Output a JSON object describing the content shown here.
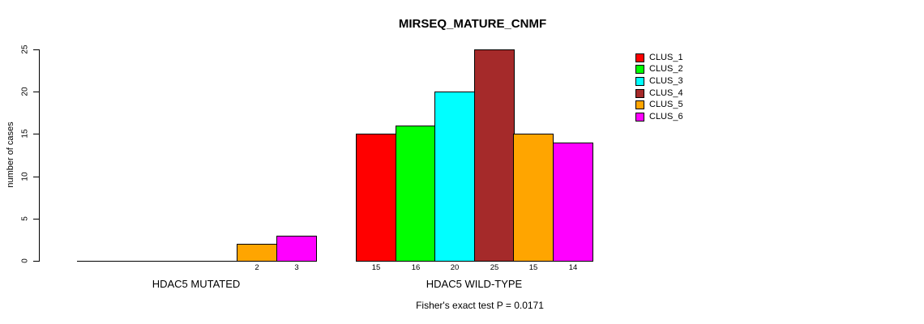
{
  "chart_data": {
    "type": "bar",
    "title": "MIRSEQ_MATURE_CNMF",
    "ylabel": "number of cases",
    "xlabel": "",
    "ylim": [
      0,
      25
    ],
    "yticks": [
      0,
      5,
      10,
      15,
      20,
      25
    ],
    "grid": false,
    "legend_position": "right",
    "bar_value_labels_shown": true,
    "categories": [
      "HDAC5 MUTATED",
      "HDAC5 WILD-TYPE"
    ],
    "series": [
      {
        "name": "CLUS_1",
        "color": "#FF0000",
        "values": [
          0,
          15
        ]
      },
      {
        "name": "CLUS_2",
        "color": "#00FF00",
        "values": [
          0,
          16
        ]
      },
      {
        "name": "CLUS_3",
        "color": "#00FFFF",
        "values": [
          0,
          20
        ]
      },
      {
        "name": "CLUS_4",
        "color": "#A52A2A",
        "values": [
          0,
          25
        ]
      },
      {
        "name": "CLUS_5",
        "color": "#FFA500",
        "values": [
          2,
          15
        ]
      },
      {
        "name": "CLUS_6",
        "color": "#FF00FF",
        "values": [
          3,
          14
        ]
      }
    ],
    "footnote": "Fisher's exact test P = 0.0171"
  }
}
